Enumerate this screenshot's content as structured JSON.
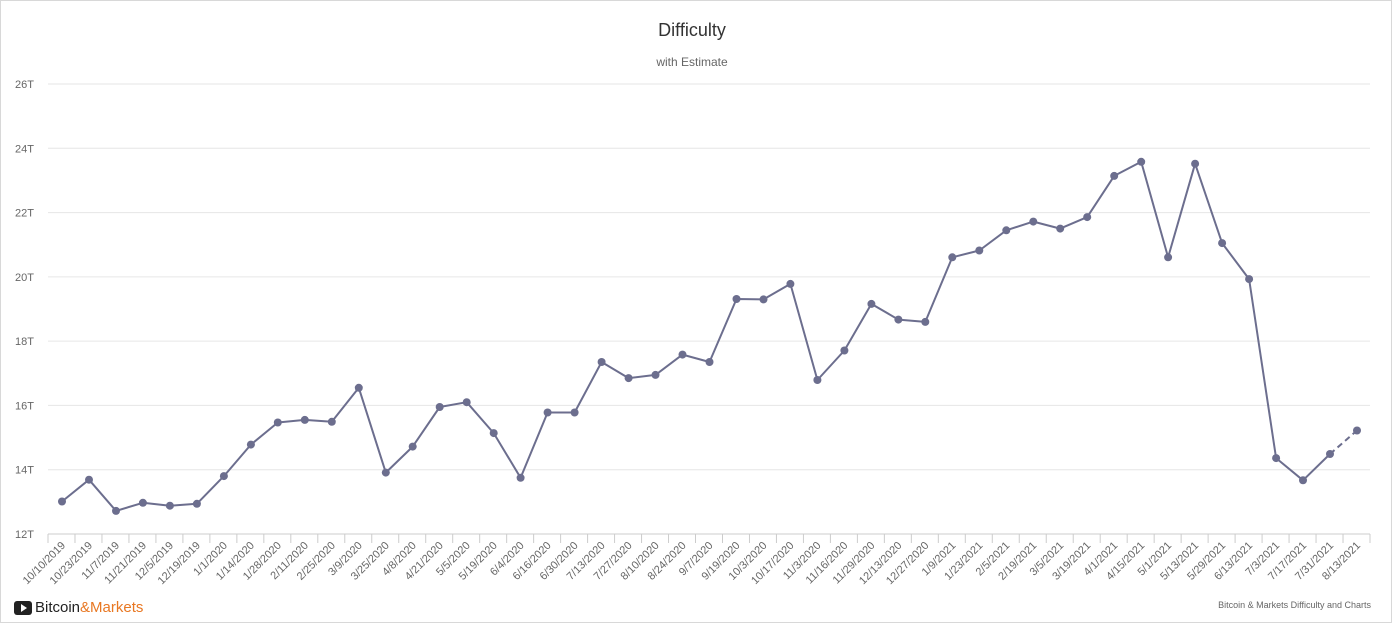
{
  "chart_data": {
    "type": "line",
    "title": "Difficulty",
    "subtitle": "with Estimate",
    "y_ticks": [
      "12T",
      "14T",
      "16T",
      "18T",
      "20T",
      "22T",
      "24T",
      "26T"
    ],
    "ylim": [
      12,
      26
    ],
    "y_unit": "T",
    "grid": true,
    "estimate_from_index": 48,
    "line_color": "#6c6e8e",
    "categories": [
      "10/10/2019",
      "10/23/2019",
      "11/7/2019",
      "11/21/2019",
      "12/5/2019",
      "12/19/2019",
      "1/1/2020",
      "1/14/2020",
      "1/28/2020",
      "2/11/2020",
      "2/25/2020",
      "3/9/2020",
      "3/25/2020",
      "4/8/2020",
      "4/21/2020",
      "5/5/2020",
      "5/19/2020",
      "6/4/2020",
      "6/16/2020",
      "6/30/2020",
      "7/13/2020",
      "7/27/2020",
      "8/10/2020",
      "8/24/2020",
      "9/7/2020",
      "9/19/2020",
      "10/3/2020",
      "10/17/2020",
      "11/3/2020",
      "11/16/2020",
      "11/29/2020",
      "12/13/2020",
      "12/27/2020",
      "1/9/2021",
      "1/23/2021",
      "2/5/2021",
      "2/19/2021",
      "3/5/2021",
      "3/19/2021",
      "4/1/2021",
      "4/15/2021",
      "5/1/2021",
      "5/13/2021",
      "5/29/2021",
      "6/13/2021",
      "7/3/2021",
      "7/17/2021",
      "7/31/2021",
      "8/13/2021"
    ],
    "values": [
      13.01,
      13.69,
      12.72,
      12.97,
      12.88,
      12.94,
      13.8,
      14.78,
      15.47,
      15.55,
      15.49,
      16.55,
      13.91,
      14.72,
      15.95,
      16.1,
      15.14,
      13.75,
      15.78,
      15.78,
      17.35,
      16.85,
      16.95,
      17.58,
      17.35,
      19.31,
      19.3,
      19.78,
      16.79,
      17.71,
      19.16,
      18.67,
      18.6,
      20.61,
      20.82,
      21.45,
      21.72,
      21.5,
      21.86,
      23.14,
      23.58,
      20.61,
      23.52,
      21.05,
      19.93,
      14.36,
      13.67,
      14.49,
      15.22
    ]
  },
  "branding": {
    "logo_part1": "Bitcoin",
    "logo_amp": "&",
    "logo_part2": "Markets",
    "credit": "Bitcoin & Markets Difficulty and Charts"
  }
}
